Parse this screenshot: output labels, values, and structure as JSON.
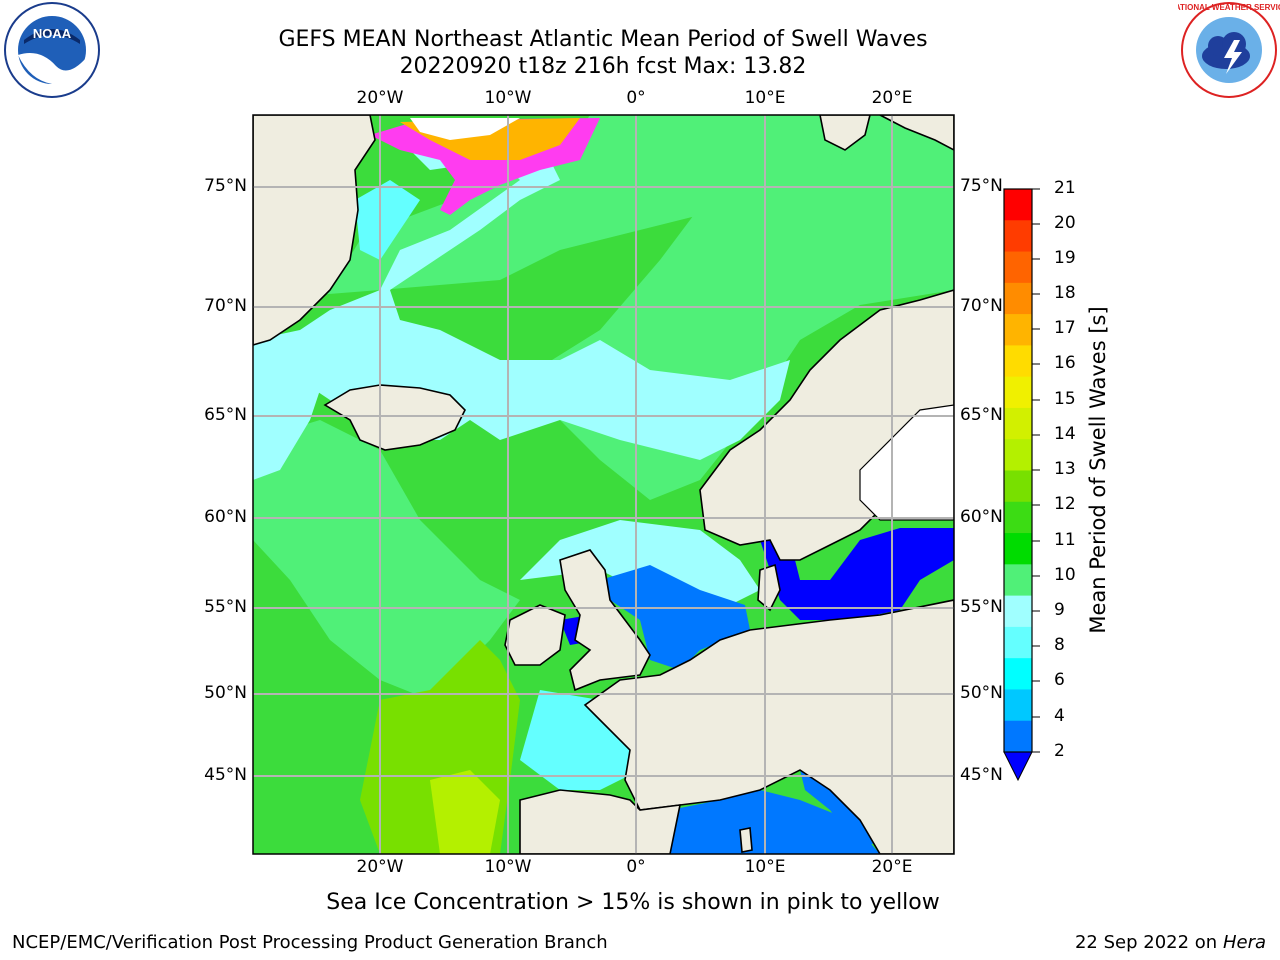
{
  "header": {
    "title_line1": "GEFS MEAN Northeast Atlantic Mean Period of Swell Waves",
    "title_line2": "20220920 t18z 216h fcst   Max: 13.82"
  },
  "axes": {
    "lon_labels": [
      "20°W",
      "10°W",
      "0°",
      "10°E",
      "20°E"
    ],
    "lat_labels": [
      "75°N",
      "70°N",
      "65°N",
      "60°N",
      "55°N",
      "50°N",
      "45°N"
    ]
  },
  "colorbar": {
    "title": "Mean Period of Swell Waves [s]",
    "ticks": [
      "21",
      "20",
      "19",
      "18",
      "17",
      "16",
      "15",
      "14",
      "13",
      "12",
      "11",
      "10",
      "9",
      "8",
      "6",
      "4",
      "2"
    ],
    "colors": [
      "#ff0000",
      "#ff3c00",
      "#ff6400",
      "#ff8c00",
      "#ffb400",
      "#ffdc00",
      "#f0f000",
      "#d2f000",
      "#b4f000",
      "#78e000",
      "#3cdc14",
      "#00dc00",
      "#50f078",
      "#a0ffff",
      "#64ffff",
      "#00ffff",
      "#00c8ff",
      "#0078ff"
    ]
  },
  "caption": "Sea Ice Concentration > 15% is shown in pink to yellow",
  "footer": {
    "left": "NCEP/EMC/Verification Post Processing Product Generation Branch",
    "right_prefix": "22 Sep 2022 on",
    "right_host": "Hera"
  },
  "logos": {
    "noaa_text": "NOAA",
    "nws_text": "NATIONAL WEATHER SERVICE"
  }
}
